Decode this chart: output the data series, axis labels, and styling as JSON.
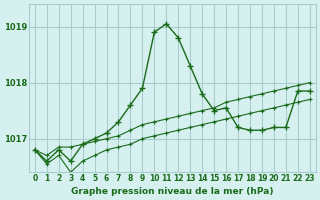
{
  "title": "Graphe pression niveau de la mer (hPa)",
  "bg_color": "#d6f0f0",
  "grid_color": "#aacccc",
  "line_color": "#1a6b1a",
  "x_labels": [
    "0",
    "1",
    "2",
    "3",
    "4",
    "5",
    "6",
    "7",
    "8",
    "9",
    "10",
    "11",
    "12",
    "13",
    "14",
    "15",
    "16",
    "17",
    "18",
    "19",
    "20",
    "21",
    "22",
    "23"
  ],
  "ylim": [
    1016.4,
    1019.4
  ],
  "yticks": [
    1017,
    1018,
    1019
  ],
  "main_line": [
    1016.8,
    1016.6,
    1016.8,
    1016.6,
    1016.9,
    1017.0,
    1017.1,
    1017.3,
    1017.6,
    1017.9,
    1018.9,
    1019.05,
    1018.8,
    1018.3,
    1017.8,
    1017.5,
    1017.55,
    1017.2,
    1017.15,
    1017.15,
    1017.2,
    1017.2,
    1017.85,
    1017.85
  ],
  "min_line": [
    1016.8,
    1016.55,
    1016.7,
    1016.4,
    1016.6,
    1016.7,
    1016.8,
    1016.85,
    1016.9,
    1017.0,
    1017.05,
    1017.1,
    1017.15,
    1017.2,
    1017.25,
    1017.3,
    1017.35,
    1017.4,
    1017.45,
    1017.5,
    1017.55,
    1017.6,
    1017.65,
    1017.7
  ],
  "max_line": [
    1016.8,
    1016.7,
    1016.85,
    1016.85,
    1016.9,
    1016.95,
    1017.0,
    1017.05,
    1017.15,
    1017.25,
    1017.3,
    1017.35,
    1017.4,
    1017.45,
    1017.5,
    1017.55,
    1017.65,
    1017.7,
    1017.75,
    1017.8,
    1017.85,
    1017.9,
    1017.95,
    1018.0
  ]
}
